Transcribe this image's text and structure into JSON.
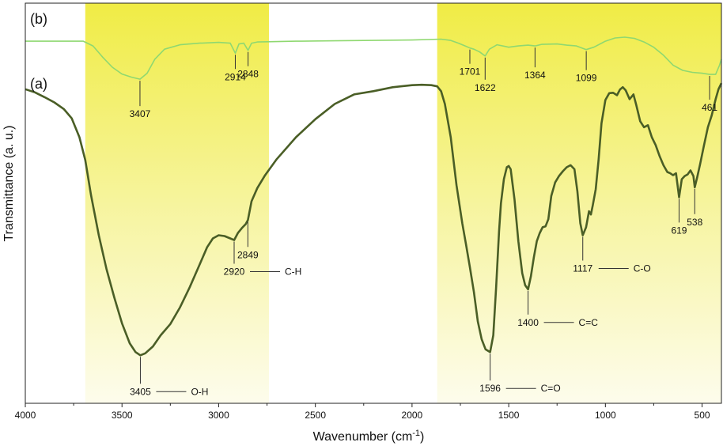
{
  "chart_data": {
    "type": "line",
    "title": "",
    "xlabel": "Wavenumber (cm",
    "xlabel_sup": "-1",
    "xlabel_close": ")",
    "ylabel": "Transmittance (a. u.)",
    "xlim": [
      4000,
      400
    ],
    "x_reversed": true,
    "xticks": [
      4000,
      3500,
      3000,
      2500,
      2000,
      1500,
      1000,
      500
    ],
    "grid": false,
    "highlight_bands": [
      {
        "from": 3690,
        "to": 2740,
        "color": "#f2ef5a"
      },
      {
        "from": 1870,
        "to": 400,
        "color": "#f2ef5a"
      }
    ],
    "series": [
      {
        "name": "(b)",
        "color": "#8fd870",
        "points": [
          [
            4000,
            0.905
          ],
          [
            3900,
            0.905
          ],
          [
            3800,
            0.905
          ],
          [
            3760,
            0.905
          ],
          [
            3700,
            0.905
          ],
          [
            3650,
            0.893
          ],
          [
            3600,
            0.865
          ],
          [
            3550,
            0.84
          ],
          [
            3500,
            0.823
          ],
          [
            3450,
            0.815
          ],
          [
            3407,
            0.81
          ],
          [
            3370,
            0.825
          ],
          [
            3330,
            0.86
          ],
          [
            3280,
            0.885
          ],
          [
            3200,
            0.896
          ],
          [
            3100,
            0.9
          ],
          [
            3000,
            0.902
          ],
          [
            2940,
            0.9
          ],
          [
            2914,
            0.875
          ],
          [
            2895,
            0.898
          ],
          [
            2870,
            0.9
          ],
          [
            2848,
            0.882
          ],
          [
            2830,
            0.9
          ],
          [
            2800,
            0.903
          ],
          [
            2600,
            0.905
          ],
          [
            2400,
            0.906
          ],
          [
            2200,
            0.907
          ],
          [
            2000,
            0.908
          ],
          [
            1850,
            0.91
          ],
          [
            1800,
            0.907
          ],
          [
            1760,
            0.9
          ],
          [
            1720,
            0.892
          ],
          [
            1701,
            0.888
          ],
          [
            1680,
            0.885
          ],
          [
            1650,
            0.878
          ],
          [
            1622,
            0.868
          ],
          [
            1600,
            0.885
          ],
          [
            1560,
            0.896
          ],
          [
            1500,
            0.89
          ],
          [
            1450,
            0.893
          ],
          [
            1400,
            0.895
          ],
          [
            1364,
            0.893
          ],
          [
            1330,
            0.897
          ],
          [
            1250,
            0.898
          ],
          [
            1200,
            0.895
          ],
          [
            1150,
            0.893
          ],
          [
            1099,
            0.884
          ],
          [
            1060,
            0.89
          ],
          [
            1000,
            0.905
          ],
          [
            950,
            0.913
          ],
          [
            900,
            0.915
          ],
          [
            850,
            0.912
          ],
          [
            800,
            0.903
          ],
          [
            750,
            0.89
          ],
          [
            700,
            0.87
          ],
          [
            650,
            0.845
          ],
          [
            600,
            0.832
          ],
          [
            550,
            0.827
          ],
          [
            500,
            0.825
          ],
          [
            461,
            0.822
          ],
          [
            430,
            0.822
          ],
          [
            410,
            0.845
          ],
          [
            400,
            0.86
          ]
        ]
      },
      {
        "name": "(a)",
        "color": "#4a5e26",
        "points": [
          [
            4000,
            0.785
          ],
          [
            3950,
            0.777
          ],
          [
            3900,
            0.765
          ],
          [
            3850,
            0.752
          ],
          [
            3800,
            0.735
          ],
          [
            3760,
            0.712
          ],
          [
            3720,
            0.665
          ],
          [
            3690,
            0.608
          ],
          [
            3660,
            0.52
          ],
          [
            3620,
            0.42
          ],
          [
            3580,
            0.335
          ],
          [
            3540,
            0.265
          ],
          [
            3500,
            0.2
          ],
          [
            3460,
            0.15
          ],
          [
            3430,
            0.128
          ],
          [
            3405,
            0.12
          ],
          [
            3380,
            0.125
          ],
          [
            3340,
            0.142
          ],
          [
            3300,
            0.17
          ],
          [
            3250,
            0.198
          ],
          [
            3200,
            0.24
          ],
          [
            3150,
            0.29
          ],
          [
            3100,
            0.345
          ],
          [
            3060,
            0.39
          ],
          [
            3030,
            0.412
          ],
          [
            3000,
            0.42
          ],
          [
            2970,
            0.418
          ],
          [
            2940,
            0.412
          ],
          [
            2920,
            0.408
          ],
          [
            2900,
            0.426
          ],
          [
            2880,
            0.438
          ],
          [
            2860,
            0.448
          ],
          [
            2849,
            0.458
          ],
          [
            2830,
            0.505
          ],
          [
            2800,
            0.538
          ],
          [
            2760,
            0.57
          ],
          [
            2700,
            0.61
          ],
          [
            2600,
            0.665
          ],
          [
            2500,
            0.71
          ],
          [
            2400,
            0.748
          ],
          [
            2300,
            0.772
          ],
          [
            2200,
            0.78
          ],
          [
            2100,
            0.79
          ],
          [
            2000,
            0.795
          ],
          [
            1950,
            0.796
          ],
          [
            1900,
            0.795
          ],
          [
            1870,
            0.792
          ],
          [
            1850,
            0.78
          ],
          [
            1830,
            0.748
          ],
          [
            1800,
            0.665
          ],
          [
            1770,
            0.545
          ],
          [
            1740,
            0.45
          ],
          [
            1720,
            0.395
          ],
          [
            1700,
            0.338
          ],
          [
            1680,
            0.278
          ],
          [
            1660,
            0.205
          ],
          [
            1640,
            0.16
          ],
          [
            1620,
            0.135
          ],
          [
            1596,
            0.128
          ],
          [
            1580,
            0.17
          ],
          [
            1565,
            0.29
          ],
          [
            1550,
            0.43
          ],
          [
            1540,
            0.5
          ],
          [
            1525,
            0.56
          ],
          [
            1510,
            0.59
          ],
          [
            1500,
            0.593
          ],
          [
            1490,
            0.585
          ],
          [
            1470,
            0.51
          ],
          [
            1450,
            0.405
          ],
          [
            1430,
            0.325
          ],
          [
            1415,
            0.295
          ],
          [
            1400,
            0.285
          ],
          [
            1385,
            0.318
          ],
          [
            1370,
            0.365
          ],
          [
            1355,
            0.405
          ],
          [
            1340,
            0.425
          ],
          [
            1325,
            0.44
          ],
          [
            1310,
            0.442
          ],
          [
            1295,
            0.46
          ],
          [
            1280,
            0.518
          ],
          [
            1260,
            0.552
          ],
          [
            1240,
            0.568
          ],
          [
            1220,
            0.58
          ],
          [
            1200,
            0.59
          ],
          [
            1180,
            0.595
          ],
          [
            1160,
            0.585
          ],
          [
            1145,
            0.53
          ],
          [
            1130,
            0.45
          ],
          [
            1117,
            0.42
          ],
          [
            1100,
            0.44
          ],
          [
            1085,
            0.48
          ],
          [
            1075,
            0.472
          ],
          [
            1065,
            0.495
          ],
          [
            1050,
            0.535
          ],
          [
            1035,
            0.61
          ],
          [
            1020,
            0.7
          ],
          [
            1000,
            0.758
          ],
          [
            980,
            0.775
          ],
          [
            960,
            0.776
          ],
          [
            940,
            0.77
          ],
          [
            925,
            0.784
          ],
          [
            910,
            0.79
          ],
          [
            895,
            0.782
          ],
          [
            875,
            0.76
          ],
          [
            855,
            0.772
          ],
          [
            840,
            0.745
          ],
          [
            820,
            0.705
          ],
          [
            800,
            0.69
          ],
          [
            780,
            0.695
          ],
          [
            760,
            0.665
          ],
          [
            740,
            0.645
          ],
          [
            720,
            0.618
          ],
          [
            700,
            0.595
          ],
          [
            680,
            0.578
          ],
          [
            665,
            0.575
          ],
          [
            650,
            0.57
          ],
          [
            635,
            0.575
          ],
          [
            619,
            0.515
          ],
          [
            605,
            0.56
          ],
          [
            590,
            0.568
          ],
          [
            575,
            0.572
          ],
          [
            560,
            0.582
          ],
          [
            545,
            0.568
          ],
          [
            538,
            0.54
          ],
          [
            525,
            0.565
          ],
          [
            510,
            0.598
          ],
          [
            490,
            0.645
          ],
          [
            470,
            0.69
          ],
          [
            450,
            0.72
          ],
          [
            430,
            0.76
          ],
          [
            415,
            0.785
          ],
          [
            400,
            0.8
          ]
        ]
      }
    ],
    "panel_labels": [
      {
        "text": "(b)",
        "series": "(b)"
      },
      {
        "text": "(a)",
        "series": "(a)"
      }
    ],
    "annotations_b": [
      {
        "x": 3407,
        "label": "3407"
      },
      {
        "x": 2914,
        "label": "2914"
      },
      {
        "x": 2848,
        "label": "2848"
      },
      {
        "x": 1701,
        "label": "1701"
      },
      {
        "x": 1622,
        "label": "1622"
      },
      {
        "x": 1364,
        "label": "1364"
      },
      {
        "x": 1099,
        "label": "1099"
      },
      {
        "x": 461,
        "label": "461"
      }
    ],
    "annotations_a": [
      {
        "x": 3405,
        "label": "3405",
        "group": "O-H"
      },
      {
        "x": 2920,
        "label": "2920",
        "group": "C-H"
      },
      {
        "x": 2849,
        "label": "2849",
        "group": ""
      },
      {
        "x": 1596,
        "label": "1596",
        "group": "C=O"
      },
      {
        "x": 1400,
        "label": "1400",
        "group": "C=C"
      },
      {
        "x": 1117,
        "label": "1117",
        "group": "C-O"
      },
      {
        "x": 619,
        "label": "619",
        "group": ""
      },
      {
        "x": 538,
        "label": "538",
        "group": ""
      }
    ]
  }
}
